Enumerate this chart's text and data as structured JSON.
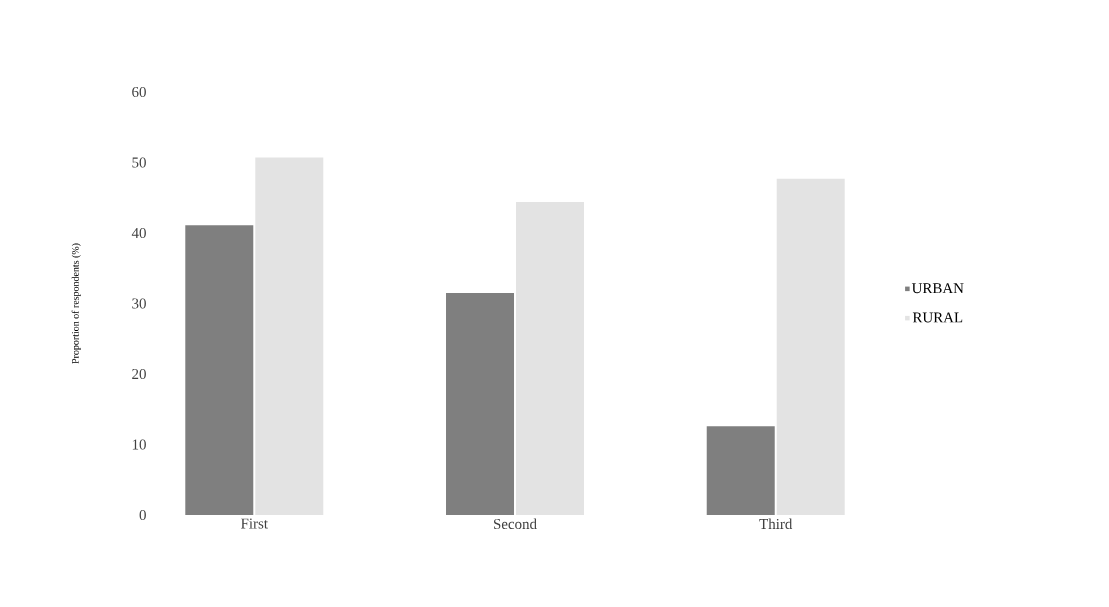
{
  "chart_data": {
    "type": "bar",
    "ylabel": "Proportion of respondents (%)",
    "categories": [
      "First",
      "Second",
      "Third"
    ],
    "series": [
      {
        "name": "URBAN",
        "color": "#7f7f7f",
        "values": [
          41.1,
          31.5,
          12.6
        ]
      },
      {
        "name": "RURAL",
        "color": "#e3e3e3",
        "values": [
          50.7,
          44.4,
          47.7
        ]
      }
    ],
    "ylim": [
      0,
      60
    ],
    "yticks": [
      0,
      10,
      20,
      30,
      40,
      50,
      60
    ],
    "legend": "right",
    "grid": false
  }
}
